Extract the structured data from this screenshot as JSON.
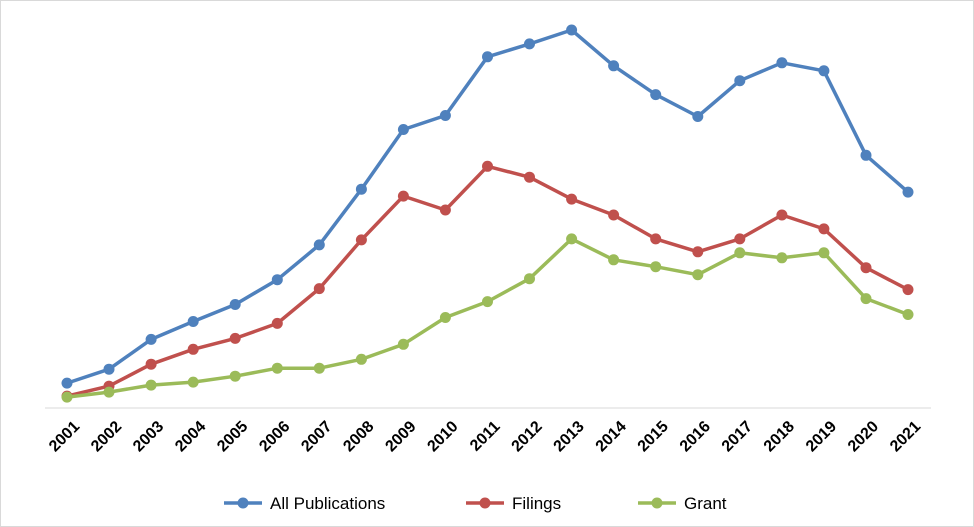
{
  "chart_data": {
    "type": "line",
    "title": "",
    "xlabel": "",
    "ylabel": "",
    "x": [
      "2001",
      "2002",
      "2003",
      "2004",
      "2005",
      "2006",
      "2007",
      "2008",
      "2009",
      "2010",
      "2011",
      "2012",
      "2013",
      "2014",
      "2015",
      "2016",
      "2017",
      "2018",
      "2019",
      "2020",
      "2021"
    ],
    "ylim": [
      0,
      382
    ],
    "grid": false,
    "y_axis_visible": false,
    "legend_position": "bottom",
    "series": [
      {
        "name": "All Publications",
        "color": "#4f81bd",
        "values": [
          25,
          39,
          69,
          87,
          104,
          129,
          164,
          220,
          280,
          294,
          353,
          366,
          380,
          344,
          315,
          293,
          329,
          347,
          339,
          254,
          217
        ]
      },
      {
        "name": "Filings",
        "color": "#c0504d",
        "values": [
          12,
          22,
          44,
          59,
          70,
          85,
          120,
          169,
          213,
          199,
          243,
          232,
          210,
          194,
          170,
          157,
          170,
          194,
          180,
          141,
          119
        ]
      },
      {
        "name": "Grant",
        "color": "#9bbb59",
        "values": [
          11,
          16,
          23,
          26,
          32,
          40,
          40,
          49,
          64,
          91,
          107,
          130,
          170,
          149,
          142,
          134,
          156,
          151,
          156,
          110,
          94
        ]
      }
    ]
  }
}
